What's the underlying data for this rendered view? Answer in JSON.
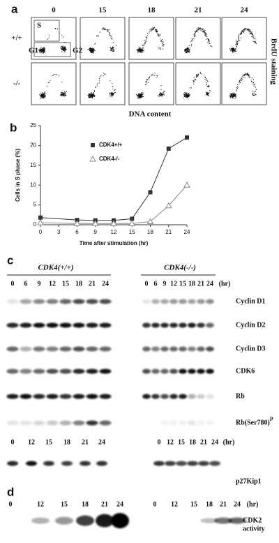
{
  "panel_a": {
    "label": "a",
    "timepoints": [
      "0",
      "15",
      "18",
      "21",
      "24"
    ],
    "genotypes": [
      "+/+",
      "-/-"
    ],
    "gates": [
      "S",
      "G1",
      "G2"
    ],
    "y_label": "BrdU staining",
    "x_label": "DNA content"
  },
  "chart_data": {
    "type": "line",
    "label": "b",
    "y_label": "Cells in S phase (%)",
    "x_label": "Time after stimulation (hr)",
    "x": [
      0,
      6,
      9,
      12,
      15,
      18,
      21,
      24
    ],
    "series": [
      {
        "name": "CDK4+/+",
        "color": "#333333",
        "marker": "filled-square",
        "values": [
          1.8,
          1.2,
          1.1,
          1.1,
          1.5,
          8.2,
          19.2,
          22
        ]
      },
      {
        "name": "CDK4-/-",
        "color": "#888888",
        "marker": "open-triangle",
        "values": [
          0.5,
          0.3,
          0.3,
          0.3,
          0.3,
          0.8,
          4.8,
          10
        ]
      }
    ],
    "xlim": [
      0,
      24
    ],
    "xticks": [
      0,
      3,
      6,
      9,
      12,
      15,
      18,
      21,
      24
    ],
    "ylim": [
      0,
      25
    ],
    "yticks": [
      0,
      5,
      10,
      15,
      20,
      25
    ]
  },
  "panel_c": {
    "label": "c",
    "groups": [
      "CDK4(+/+)",
      "CDK4(-/-)"
    ],
    "lanes": [
      "0",
      "6",
      "9",
      "12",
      "15",
      "18",
      "21",
      "24"
    ],
    "unit": "(hr)",
    "blots": [
      {
        "name": "Cyclin D1"
      },
      {
        "name": "Cyclin D2"
      },
      {
        "name": "Cyclin D3"
      },
      {
        "name": "CDK6"
      },
      {
        "name": "Rb"
      },
      {
        "name": "Rb(Ser780)",
        "superscript": "P"
      }
    ],
    "p27_lanes": [
      "0",
      "12",
      "15",
      "18",
      "21",
      "24"
    ],
    "p27_name": "p27Kip1"
  },
  "panel_d": {
    "label": "d",
    "lanes": [
      "0",
      "12",
      "15",
      "18",
      "21",
      "24"
    ],
    "unit": "(hr)",
    "name_lines": [
      "CDK2",
      "activity"
    ]
  }
}
